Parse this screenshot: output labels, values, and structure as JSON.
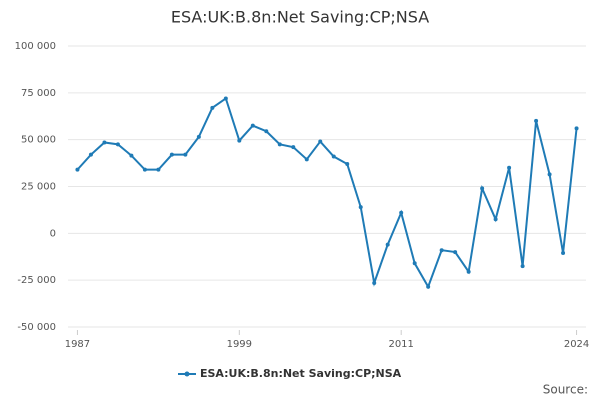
{
  "chart_data": {
    "type": "line",
    "title": "ESA:UK:B.8n:Net Saving:CP;NSA",
    "source": "Source:",
    "x": [
      1987,
      1988,
      1989,
      1990,
      1991,
      1992,
      1993,
      1994,
      1995,
      1996,
      1997,
      1998,
      1999,
      2000,
      2001,
      2002,
      2003,
      2004,
      2005,
      2006,
      2007,
      2008,
      2009,
      2010,
      2011,
      2012,
      2013,
      2014,
      2015,
      2016,
      2017,
      2018,
      2019,
      2020,
      2021,
      2022,
      2023,
      2024
    ],
    "series": [
      {
        "name": "ESA:UK:B.8n:Net Saving:CP;NSA",
        "color": "#1f7bb6",
        "values": [
          34000,
          42000,
          48500,
          47500,
          41500,
          34000,
          34000,
          42000,
          42000,
          51500,
          67000,
          72000,
          49500,
          57500,
          54500,
          47500,
          46000,
          39500,
          49000,
          41000,
          37000,
          14000,
          -26500,
          -6000,
          11000,
          -16000,
          -28500,
          -9000,
          -10000,
          -20500,
          24000,
          7500,
          35000,
          -17500,
          60000,
          31500,
          -10500,
          56000
        ]
      }
    ],
    "xlim": [
      1986.3,
      2024.7
    ],
    "xticks": [
      1987,
      1999,
      2011,
      2024
    ],
    "ylim": [
      -51600,
      103200
    ],
    "yticks": [
      {
        "value": -50000,
        "label": "-50 000"
      },
      {
        "value": -25000,
        "label": "-25 000"
      },
      0,
      {
        "value": 25000,
        "label": "25 000"
      },
      {
        "value": 50000,
        "label": "50 000"
      },
      {
        "value": 75000,
        "label": "75 000"
      },
      {
        "value": 100000,
        "label": "100 000"
      }
    ],
    "grid": true
  }
}
